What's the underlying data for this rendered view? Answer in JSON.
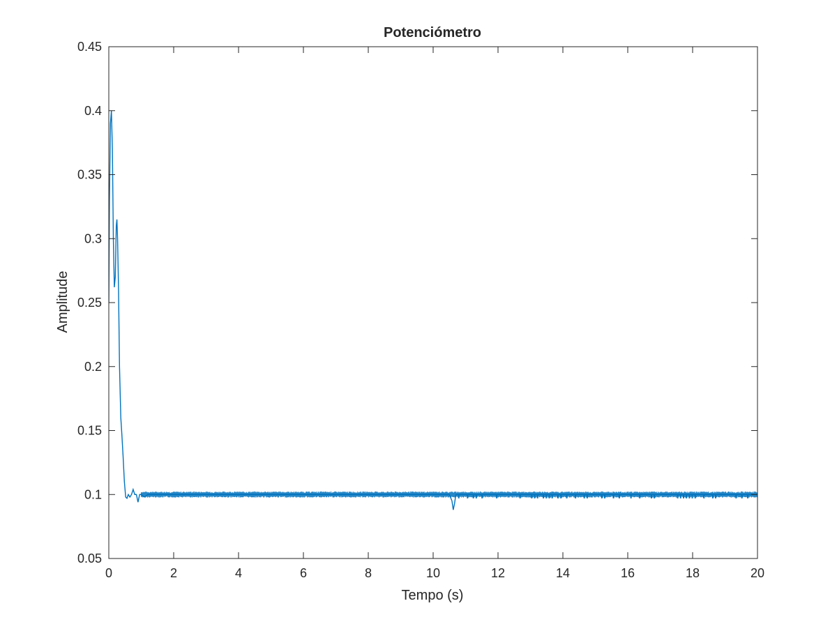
{
  "chart_data": {
    "type": "line",
    "title": "Potenciómetro",
    "xlabel": "Tempo (s)",
    "ylabel": "Amplitude",
    "xlim": [
      0,
      20
    ],
    "ylim": [
      0.05,
      0.45
    ],
    "xticks": [
      0,
      2,
      4,
      6,
      8,
      10,
      12,
      14,
      16,
      18,
      20
    ],
    "yticks": [
      0.05,
      0.1,
      0.15,
      0.2,
      0.25,
      0.3,
      0.35,
      0.4,
      0.45
    ],
    "xtick_labels": [
      "0",
      "2",
      "4",
      "6",
      "8",
      "10",
      "12",
      "14",
      "16",
      "18",
      "20"
    ],
    "ytick_labels": [
      "0.05",
      "0.1",
      "0.15",
      "0.2",
      "0.25",
      "0.3",
      "0.35",
      "0.4",
      "0.45"
    ],
    "grid": false,
    "line_color": "#0072BD",
    "series": [
      {
        "points": [
          [
            0.0,
            0.25
          ],
          [
            0.02,
            0.33
          ],
          [
            0.05,
            0.39
          ],
          [
            0.08,
            0.4
          ],
          [
            0.11,
            0.37
          ],
          [
            0.14,
            0.3
          ],
          [
            0.17,
            0.262
          ],
          [
            0.2,
            0.27
          ],
          [
            0.23,
            0.31
          ],
          [
            0.25,
            0.315
          ],
          [
            0.27,
            0.3
          ],
          [
            0.3,
            0.26
          ],
          [
            0.33,
            0.2
          ],
          [
            0.37,
            0.16
          ],
          [
            0.4,
            0.148
          ],
          [
            0.44,
            0.13
          ],
          [
            0.48,
            0.11
          ],
          [
            0.52,
            0.098
          ],
          [
            0.56,
            0.097
          ],
          [
            0.6,
            0.1
          ],
          [
            0.65,
            0.098
          ],
          [
            0.7,
            0.1
          ],
          [
            0.75,
            0.104
          ],
          [
            0.8,
            0.1
          ],
          [
            0.85,
            0.1
          ],
          [
            0.9,
            0.094
          ],
          [
            0.95,
            0.1
          ],
          [
            1.0,
            0.1
          ],
          [
            1.1,
            0.098
          ],
          [
            1.2,
            0.1
          ],
          [
            1.4,
            0.1
          ],
          [
            2.0,
            0.1
          ],
          [
            4.0,
            0.1
          ],
          [
            6.0,
            0.1
          ],
          [
            8.0,
            0.1
          ],
          [
            10.0,
            0.1
          ],
          [
            10.5,
            0.1
          ],
          [
            10.58,
            0.095
          ],
          [
            10.62,
            0.088
          ],
          [
            10.66,
            0.093
          ],
          [
            10.7,
            0.1
          ],
          [
            12.0,
            0.1
          ],
          [
            14.0,
            0.1
          ],
          [
            16.0,
            0.1
          ],
          [
            18.0,
            0.1
          ],
          [
            20.0,
            0.1
          ]
        ]
      }
    ],
    "noise_amplitude": 0.002,
    "dip_value": 0.097,
    "dips_begin_x": 10.7
  }
}
